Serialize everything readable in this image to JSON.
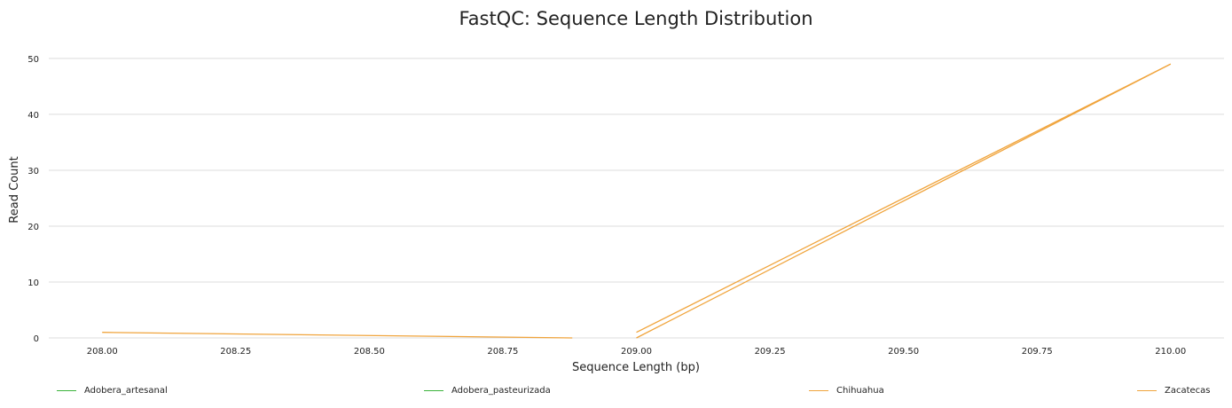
{
  "chart_data": {
    "type": "line",
    "title": "FastQC: Sequence Length Distribution",
    "xlabel": "Sequence Length (bp)",
    "ylabel": "Read Count",
    "xlim": [
      207.9,
      210.1
    ],
    "ylim": [
      0,
      53
    ],
    "xticks": [
      208.0,
      208.25,
      208.5,
      208.75,
      209.0,
      209.25,
      209.5,
      209.75,
      210.0
    ],
    "xtick_labels": [
      "208.00",
      "208.25",
      "208.50",
      "208.75",
      "209.00",
      "209.25",
      "209.50",
      "209.75",
      "210.00"
    ],
    "yticks": [
      0,
      10,
      20,
      30,
      40,
      50
    ],
    "ytick_labels": [
      "0",
      "10",
      "20",
      "30",
      "40",
      "50"
    ],
    "grid": true,
    "legend_position": "bottom",
    "series": [
      {
        "name": "Adobera_artesanal",
        "color": "#3bb33b",
        "x": [],
        "y": []
      },
      {
        "name": "Adobera_pasteurizada",
        "color": "#3bb33b",
        "x": [],
        "y": []
      },
      {
        "name": "Chihuahua",
        "color": "#f0a43c",
        "x": [
          208.0,
          208.88
        ],
        "y": [
          1,
          0
        ]
      },
      {
        "name": "Zacatecas",
        "color": "#f0a43c",
        "x": [
          209.0,
          210.0
        ],
        "y": [
          1,
          49
        ]
      },
      {
        "name": "",
        "color": "#f0a43c",
        "x": [
          209.0,
          210.0
        ],
        "y": [
          0,
          49
        ]
      }
    ]
  }
}
